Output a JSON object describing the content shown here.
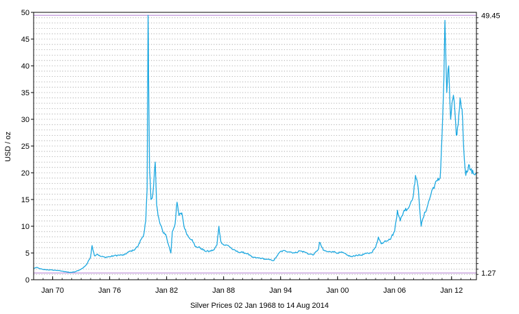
{
  "chart_data": {
    "type": "line",
    "title": "",
    "xlabel": "Silver Prices 02 Jan 1968 to 14 Aug 2014",
    "ylabel": "USD / oz",
    "xlim": [
      1968.0,
      2014.62
    ],
    "ylim": [
      0,
      50
    ],
    "yticks": [
      0,
      5,
      10,
      15,
      20,
      25,
      30,
      35,
      40,
      45,
      50
    ],
    "xticks": [
      {
        "label": "Jan 70",
        "x": 1970.0
      },
      {
        "label": "Jan 76",
        "x": 1976.0
      },
      {
        "label": "Jan 82",
        "x": 1982.0
      },
      {
        "label": "Jan 88",
        "x": 1988.0
      },
      {
        "label": "Jan 94",
        "x": 1994.0
      },
      {
        "label": "Jan 00",
        "x": 2000.0
      },
      {
        "label": "Jan 06",
        "x": 2006.0
      },
      {
        "label": "Jan 12",
        "x": 2012.0
      }
    ],
    "grid": true,
    "reference_lines": [
      {
        "label": "49.45",
        "value": 49.45
      },
      {
        "label": "1.27",
        "value": 1.27
      }
    ],
    "line_color": "#1aa7e0",
    "series": [
      {
        "x": [
          1968.0,
          1968.3,
          1968.6,
          1969.0,
          1969.5,
          1970.0,
          1970.5,
          1971.0,
          1971.4,
          1971.8,
          1972.3,
          1972.8,
          1973.2,
          1973.6,
          1974.0,
          1974.15,
          1974.4,
          1974.7,
          1975.0,
          1975.5,
          1976.0,
          1976.5,
          1977.0,
          1977.5,
          1978.0,
          1978.5,
          1979.0,
          1979.3,
          1979.6,
          1979.8,
          1979.95,
          1980.05,
          1980.1,
          1980.2,
          1980.35,
          1980.55,
          1980.8,
          1980.95,
          1981.1,
          1981.3,
          1981.6,
          1981.9,
          1982.2,
          1982.45,
          1982.6,
          1982.9,
          1983.1,
          1983.3,
          1983.6,
          1983.9,
          1984.3,
          1984.7,
          1985.0,
          1985.5,
          1986.0,
          1986.5,
          1987.0,
          1987.3,
          1987.5,
          1987.7,
          1988.0,
          1988.5,
          1989.0,
          1989.5,
          1990.0,
          1990.5,
          1991.0,
          1991.5,
          1992.0,
          1992.5,
          1993.0,
          1993.3,
          1993.6,
          1994.0,
          1994.5,
          1995.0,
          1995.5,
          1996.0,
          1996.5,
          1997.0,
          1997.5,
          1998.0,
          1998.1,
          1998.5,
          1999.0,
          1999.5,
          2000.0,
          2000.5,
          2001.0,
          2001.5,
          2002.0,
          2002.5,
          2003.0,
          2003.5,
          2004.0,
          2004.3,
          2004.6,
          2005.0,
          2005.5,
          2006.0,
          2006.3,
          2006.6,
          2007.0,
          2007.5,
          2008.0,
          2008.2,
          2008.5,
          2008.8,
          2009.0,
          2009.5,
          2010.0,
          2010.5,
          2010.8,
          2011.0,
          2011.2,
          2011.3,
          2011.5,
          2011.7,
          2011.9,
          2012.0,
          2012.2,
          2012.5,
          2012.7,
          2012.9,
          2013.1,
          2013.3,
          2013.5,
          2013.8,
          2014.0,
          2014.3,
          2014.62
        ],
        "values": [
          2.1,
          2.3,
          2.1,
          1.9,
          1.85,
          1.8,
          1.75,
          1.6,
          1.5,
          1.35,
          1.45,
          1.8,
          2.2,
          2.9,
          4.3,
          6.4,
          4.5,
          4.8,
          4.4,
          4.2,
          4.3,
          4.5,
          4.6,
          4.6,
          5.2,
          5.5,
          6.3,
          7.5,
          8.5,
          11.0,
          17.0,
          49.45,
          38.0,
          21.0,
          15.0,
          16.0,
          22.0,
          14.0,
          12.0,
          10.5,
          9.0,
          8.5,
          6.5,
          5.0,
          9.0,
          10.5,
          14.5,
          12.0,
          12.5,
          9.5,
          8.0,
          7.5,
          6.2,
          6.0,
          5.4,
          5.3,
          5.6,
          6.5,
          10.0,
          7.2,
          6.5,
          6.4,
          5.6,
          5.2,
          5.1,
          4.9,
          4.2,
          4.1,
          4.0,
          3.8,
          3.7,
          3.6,
          4.4,
          5.3,
          5.4,
          5.2,
          5.0,
          5.4,
          5.2,
          4.8,
          4.7,
          5.8,
          7.0,
          5.5,
          5.2,
          5.3,
          5.0,
          5.1,
          4.6,
          4.3,
          4.6,
          4.6,
          4.9,
          5.0,
          6.0,
          8.0,
          6.7,
          7.3,
          7.5,
          9.0,
          13.0,
          11.0,
          13.0,
          13.5,
          16.0,
          19.5,
          17.0,
          10.0,
          11.5,
          14.0,
          17.0,
          18.5,
          19.0,
          27.0,
          38.0,
          48.5,
          35.0,
          40.0,
          30.0,
          32.0,
          34.5,
          27.0,
          29.0,
          34.0,
          32.0,
          24.0,
          19.5,
          21.5,
          20.5,
          19.8,
          20.0
        ]
      }
    ]
  }
}
